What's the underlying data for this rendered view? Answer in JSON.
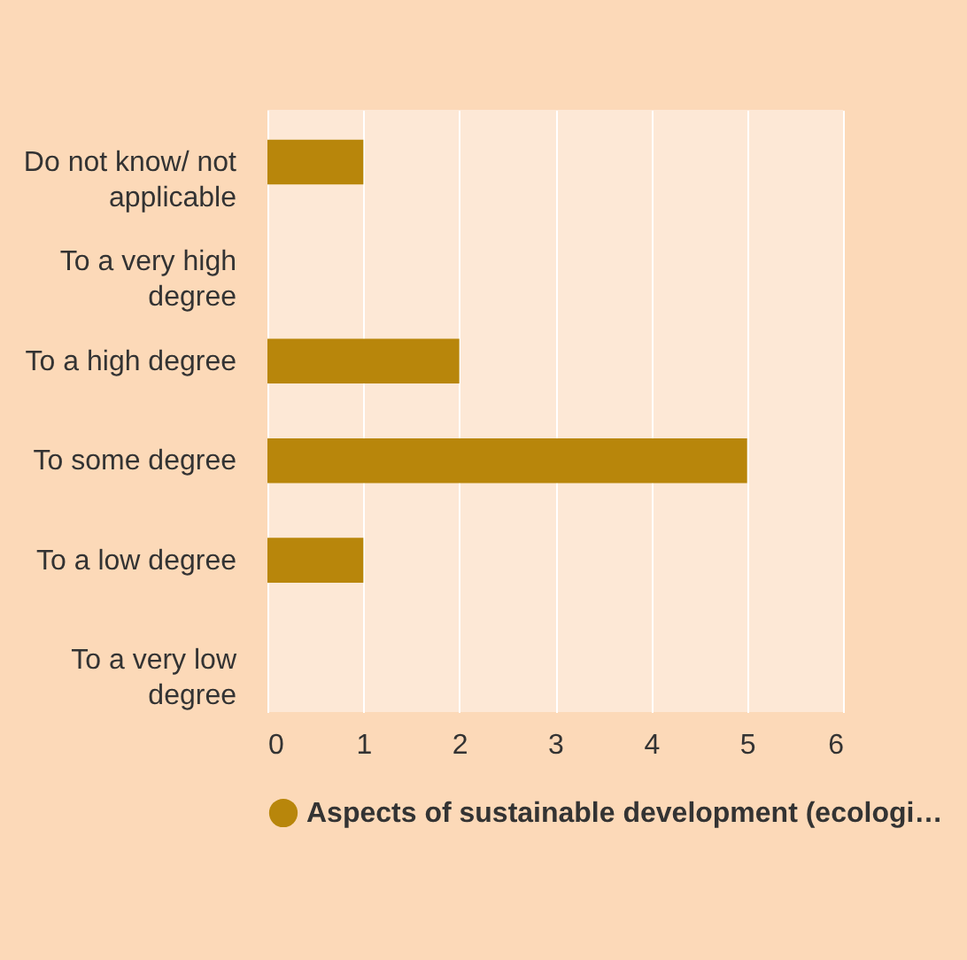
{
  "chart_data": {
    "type": "bar",
    "orientation": "horizontal",
    "categories": [
      "Do not know/ not applicable",
      "To a very high degree",
      "To a high degree",
      "To some degree",
      "To a low degree",
      "To a very low degree"
    ],
    "series": [
      {
        "name": "Aspects of sustainable development (ecologi…",
        "color": "#b8860b",
        "values": [
          1,
          0,
          2,
          5,
          1,
          0
        ]
      }
    ],
    "xlim": [
      0,
      6
    ],
    "xticks": [
      0,
      1,
      2,
      3,
      4,
      5,
      6
    ],
    "grid": "x",
    "legend": "bottom"
  }
}
